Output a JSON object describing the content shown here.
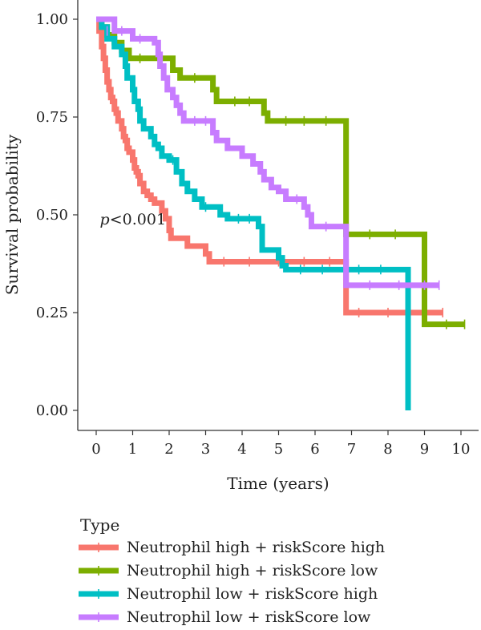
{
  "chart_data": {
    "type": "line",
    "subtype": "kaplan-meier step curves",
    "xlabel": "Time (years)",
    "ylabel": "Survival probability",
    "xlim": [
      0,
      10
    ],
    "ylim": [
      0,
      1
    ],
    "x_ticks": [
      0,
      1,
      2,
      3,
      4,
      5,
      6,
      7,
      8,
      9,
      10
    ],
    "y_ticks": [
      "0.00",
      "0.25",
      "0.50",
      "0.75",
      "1.00"
    ],
    "grid": false,
    "annotation": {
      "prefix": "p",
      "text": "<0.001",
      "x": 0.1,
      "y": 0.49
    },
    "legend": {
      "title": "Type",
      "placement": "bottom-left"
    },
    "series": [
      {
        "name": "Neutrophil high + riskScore high",
        "color": "#F8766D",
        "points": [
          [
            0,
            1.0
          ],
          [
            0.08,
            0.97
          ],
          [
            0.15,
            0.93
          ],
          [
            0.2,
            0.9
          ],
          [
            0.25,
            0.87
          ],
          [
            0.3,
            0.84
          ],
          [
            0.35,
            0.82
          ],
          [
            0.4,
            0.8
          ],
          [
            0.45,
            0.79
          ],
          [
            0.5,
            0.77
          ],
          [
            0.55,
            0.76
          ],
          [
            0.6,
            0.74
          ],
          [
            0.7,
            0.72
          ],
          [
            0.75,
            0.7
          ],
          [
            0.8,
            0.69
          ],
          [
            0.85,
            0.67
          ],
          [
            0.9,
            0.66
          ],
          [
            1.0,
            0.64
          ],
          [
            1.05,
            0.62
          ],
          [
            1.1,
            0.61
          ],
          [
            1.15,
            0.6
          ],
          [
            1.2,
            0.58
          ],
          [
            1.3,
            0.56
          ],
          [
            1.4,
            0.55
          ],
          [
            1.5,
            0.54
          ],
          [
            1.6,
            0.53
          ],
          [
            1.8,
            0.51
          ],
          [
            1.9,
            0.49
          ],
          [
            2.0,
            0.46
          ],
          [
            2.05,
            0.44
          ],
          [
            2.5,
            0.42
          ],
          [
            3.0,
            0.4
          ],
          [
            3.1,
            0.38
          ],
          [
            6.8,
            0.38
          ],
          [
            6.85,
            0.25
          ],
          [
            9.5,
            0.25
          ]
        ],
        "censor_marks": [
          [
            3.5,
            0.38
          ],
          [
            4.2,
            0.38
          ],
          [
            5.0,
            0.38
          ],
          [
            5.7,
            0.38
          ],
          [
            6.4,
            0.38
          ],
          [
            7.2,
            0.25
          ],
          [
            8.0,
            0.25
          ],
          [
            9.0,
            0.25
          ],
          [
            9.5,
            0.25
          ]
        ]
      },
      {
        "name": "Neutrophil high + riskScore low",
        "color": "#7CAE00",
        "points": [
          [
            0,
            1.0
          ],
          [
            0.15,
            0.98
          ],
          [
            0.3,
            0.96
          ],
          [
            0.5,
            0.94
          ],
          [
            0.7,
            0.92
          ],
          [
            0.9,
            0.9
          ],
          [
            1.5,
            0.9
          ],
          [
            2.1,
            0.87
          ],
          [
            2.3,
            0.85
          ],
          [
            3.2,
            0.82
          ],
          [
            3.3,
            0.79
          ],
          [
            4.6,
            0.76
          ],
          [
            4.7,
            0.74
          ],
          [
            6.8,
            0.74
          ],
          [
            6.85,
            0.45
          ],
          [
            8.9,
            0.45
          ],
          [
            9.0,
            0.22
          ],
          [
            10.1,
            0.22
          ]
        ],
        "censor_marks": [
          [
            1.2,
            0.9
          ],
          [
            2.7,
            0.85
          ],
          [
            3.8,
            0.79
          ],
          [
            4.2,
            0.79
          ],
          [
            5.2,
            0.74
          ],
          [
            5.7,
            0.74
          ],
          [
            6.3,
            0.74
          ],
          [
            7.5,
            0.45
          ],
          [
            8.2,
            0.45
          ],
          [
            9.6,
            0.22
          ],
          [
            10.1,
            0.22
          ]
        ]
      },
      {
        "name": "Neutrophil low + riskScore high",
        "color": "#00BFC4",
        "points": [
          [
            0,
            1.0
          ],
          [
            0.15,
            0.98
          ],
          [
            0.3,
            0.95
          ],
          [
            0.5,
            0.93
          ],
          [
            0.7,
            0.91
          ],
          [
            0.8,
            0.88
          ],
          [
            0.85,
            0.85
          ],
          [
            1.0,
            0.82
          ],
          [
            1.05,
            0.79
          ],
          [
            1.15,
            0.77
          ],
          [
            1.2,
            0.74
          ],
          [
            1.3,
            0.72
          ],
          [
            1.5,
            0.7
          ],
          [
            1.6,
            0.68
          ],
          [
            1.7,
            0.67
          ],
          [
            1.8,
            0.65
          ],
          [
            2.0,
            0.64
          ],
          [
            2.2,
            0.61
          ],
          [
            2.35,
            0.58
          ],
          [
            2.5,
            0.56
          ],
          [
            2.7,
            0.54
          ],
          [
            2.9,
            0.52
          ],
          [
            3.4,
            0.5
          ],
          [
            3.6,
            0.49
          ],
          [
            4.45,
            0.47
          ],
          [
            4.55,
            0.41
          ],
          [
            5.0,
            0.39
          ],
          [
            5.1,
            0.37
          ],
          [
            5.2,
            0.36
          ],
          [
            8.5,
            0.36
          ],
          [
            8.55,
            0.0
          ]
        ],
        "censor_marks": [
          [
            2.1,
            0.64
          ],
          [
            3.0,
            0.52
          ],
          [
            3.9,
            0.49
          ],
          [
            4.2,
            0.49
          ],
          [
            5.6,
            0.36
          ],
          [
            6.2,
            0.36
          ],
          [
            7.2,
            0.36
          ],
          [
            7.8,
            0.36
          ]
        ]
      },
      {
        "name": "Neutrophil low + riskScore low",
        "color": "#C77CFF",
        "points": [
          [
            0,
            1.0
          ],
          [
            0.5,
            0.97
          ],
          [
            1.0,
            0.95
          ],
          [
            1.6,
            0.94
          ],
          [
            1.7,
            0.91
          ],
          [
            1.75,
            0.88
          ],
          [
            1.85,
            0.85
          ],
          [
            1.95,
            0.82
          ],
          [
            2.1,
            0.8
          ],
          [
            2.2,
            0.78
          ],
          [
            2.3,
            0.76
          ],
          [
            2.4,
            0.74
          ],
          [
            3.2,
            0.71
          ],
          [
            3.3,
            0.69
          ],
          [
            3.6,
            0.67
          ],
          [
            4.0,
            0.65
          ],
          [
            4.3,
            0.63
          ],
          [
            4.5,
            0.61
          ],
          [
            4.6,
            0.59
          ],
          [
            4.8,
            0.57
          ],
          [
            5.0,
            0.56
          ],
          [
            5.2,
            0.54
          ],
          [
            5.7,
            0.52
          ],
          [
            5.8,
            0.5
          ],
          [
            5.9,
            0.47
          ],
          [
            6.8,
            0.47
          ],
          [
            6.85,
            0.32
          ],
          [
            9.4,
            0.32
          ]
        ],
        "censor_marks": [
          [
            0.3,
            0.97
          ],
          [
            0.7,
            0.97
          ],
          [
            1.2,
            0.95
          ],
          [
            2.7,
            0.74
          ],
          [
            3.0,
            0.74
          ],
          [
            5.5,
            0.54
          ],
          [
            6.3,
            0.47
          ],
          [
            7.5,
            0.32
          ],
          [
            8.3,
            0.32
          ],
          [
            9.0,
            0.32
          ],
          [
            9.4,
            0.32
          ]
        ]
      }
    ]
  }
}
